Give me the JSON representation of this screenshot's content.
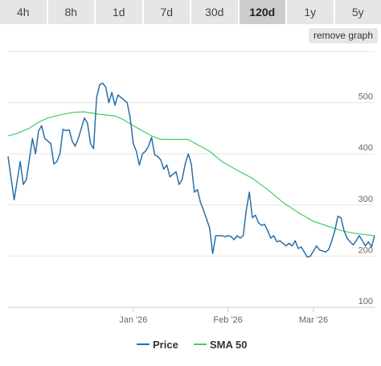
{
  "tabs": [
    {
      "label": "4h"
    },
    {
      "label": "8h"
    },
    {
      "label": "1d"
    },
    {
      "label": "7d"
    },
    {
      "label": "30d"
    },
    {
      "label": "120d",
      "active": true
    },
    {
      "label": "1y"
    },
    {
      "label": "5y"
    }
  ],
  "remove_graph_label": "remove graph",
  "chart_data": {
    "type": "line",
    "title": "",
    "xlabel": "",
    "ylabel": "",
    "x_ticks": [
      "Jan '26",
      "Feb '26",
      "Mar '26"
    ],
    "y_ticks": [
      100,
      200,
      300,
      400,
      500
    ],
    "ylim": [
      100,
      600
    ],
    "xlim": [
      "2025-11-21",
      "2026-03-21"
    ],
    "grid": true,
    "legend_position": "bottom",
    "series": [
      {
        "name": "Price",
        "color": "#2a6fa8",
        "points": [
          [
            "2025-11-21",
            395
          ],
          [
            "2025-11-23",
            310
          ],
          [
            "2025-11-25",
            385
          ],
          [
            "2025-11-26",
            340
          ],
          [
            "2025-11-27",
            350
          ],
          [
            "2025-11-29",
            430
          ],
          [
            "2025-11-30",
            400
          ],
          [
            "2025-12-01",
            445
          ],
          [
            "2025-12-02",
            455
          ],
          [
            "2025-12-03",
            430
          ],
          [
            "2025-12-05",
            420
          ],
          [
            "2025-12-06",
            380
          ],
          [
            "2025-12-07",
            385
          ],
          [
            "2025-12-08",
            400
          ],
          [
            "2025-12-09",
            448
          ],
          [
            "2025-12-10",
            445
          ],
          [
            "2025-12-11",
            447
          ],
          [
            "2025-12-12",
            425
          ],
          [
            "2025-12-13",
            415
          ],
          [
            "2025-12-14",
            430
          ],
          [
            "2025-12-16",
            470
          ],
          [
            "2025-12-17",
            460
          ],
          [
            "2025-12-18",
            420
          ],
          [
            "2025-12-19",
            410
          ],
          [
            "2025-12-20",
            510
          ],
          [
            "2025-12-21",
            535
          ],
          [
            "2025-12-22",
            538
          ],
          [
            "2025-12-23",
            530
          ],
          [
            "2025-12-24",
            500
          ],
          [
            "2025-12-25",
            520
          ],
          [
            "2025-12-26",
            495
          ],
          [
            "2025-12-27",
            515
          ],
          [
            "2025-12-29",
            505
          ],
          [
            "2025-12-30",
            500
          ],
          [
            "2025-12-31",
            470
          ],
          [
            "2026-01-01",
            420
          ],
          [
            "2026-01-02",
            405
          ],
          [
            "2026-01-03",
            378
          ],
          [
            "2026-01-04",
            400
          ],
          [
            "2026-01-05",
            405
          ],
          [
            "2026-01-06",
            415
          ],
          [
            "2026-01-07",
            432
          ],
          [
            "2026-01-08",
            398
          ],
          [
            "2026-01-09",
            395
          ],
          [
            "2026-01-10",
            388
          ],
          [
            "2026-01-11",
            370
          ],
          [
            "2026-01-12",
            378
          ],
          [
            "2026-01-13",
            355
          ],
          [
            "2026-01-14",
            360
          ],
          [
            "2026-01-15",
            365
          ],
          [
            "2026-01-16",
            340
          ],
          [
            "2026-01-17",
            350
          ],
          [
            "2026-01-18",
            380
          ],
          [
            "2026-01-19",
            400
          ],
          [
            "2026-01-20",
            380
          ],
          [
            "2026-01-21",
            325
          ],
          [
            "2026-01-22",
            330
          ],
          [
            "2026-01-23",
            305
          ],
          [
            "2026-01-24",
            290
          ],
          [
            "2026-01-26",
            255
          ],
          [
            "2026-01-27",
            205
          ],
          [
            "2026-01-28",
            240
          ],
          [
            "2026-01-29",
            240
          ],
          [
            "2026-01-30",
            240
          ],
          [
            "2026-01-31",
            238
          ],
          [
            "2026-02-01",
            240
          ],
          [
            "2026-02-02",
            238
          ],
          [
            "2026-02-03",
            232
          ],
          [
            "2026-02-04",
            240
          ],
          [
            "2026-02-05",
            235
          ],
          [
            "2026-02-06",
            240
          ],
          [
            "2026-02-07",
            290
          ],
          [
            "2026-02-08",
            325
          ],
          [
            "2026-02-09",
            275
          ],
          [
            "2026-02-10",
            280
          ],
          [
            "2026-02-11",
            265
          ],
          [
            "2026-02-12",
            260
          ],
          [
            "2026-02-13",
            262
          ],
          [
            "2026-02-14",
            250
          ],
          [
            "2026-02-15",
            235
          ],
          [
            "2026-02-16",
            240
          ],
          [
            "2026-02-17",
            228
          ],
          [
            "2026-02-18",
            230
          ],
          [
            "2026-02-19",
            225
          ],
          [
            "2026-02-20",
            220
          ],
          [
            "2026-02-21",
            225
          ],
          [
            "2026-02-22",
            220
          ],
          [
            "2026-02-23",
            230
          ],
          [
            "2026-02-24",
            215
          ],
          [
            "2026-02-25",
            218
          ],
          [
            "2026-02-27",
            198
          ],
          [
            "2026-02-28",
            200
          ],
          [
            "2026-03-01",
            210
          ],
          [
            "2026-03-02",
            220
          ],
          [
            "2026-03-03",
            212
          ],
          [
            "2026-03-04",
            210
          ],
          [
            "2026-03-05",
            208
          ],
          [
            "2026-03-06",
            213
          ],
          [
            "2026-03-07",
            230
          ],
          [
            "2026-03-08",
            250
          ],
          [
            "2026-03-09",
            278
          ],
          [
            "2026-03-10",
            275
          ],
          [
            "2026-03-11",
            250
          ],
          [
            "2026-03-12",
            235
          ],
          [
            "2026-03-13",
            228
          ],
          [
            "2026-03-14",
            222
          ],
          [
            "2026-03-15",
            230
          ],
          [
            "2026-03-16",
            240
          ],
          [
            "2026-03-17",
            230
          ],
          [
            "2026-03-18",
            220
          ],
          [
            "2026-03-19",
            228
          ],
          [
            "2026-03-20",
            218
          ],
          [
            "2026-03-21",
            240
          ]
        ]
      },
      {
        "name": "SMA 50",
        "color": "#44cc66",
        "points": [
          [
            "2025-11-21",
            435
          ],
          [
            "2025-11-24",
            440
          ],
          [
            "2025-11-28",
            450
          ],
          [
            "2025-12-01",
            462
          ],
          [
            "2025-12-04",
            470
          ],
          [
            "2025-12-08",
            476
          ],
          [
            "2025-12-12",
            481
          ],
          [
            "2025-12-16",
            482
          ],
          [
            "2025-12-20",
            478
          ],
          [
            "2025-12-23",
            476
          ],
          [
            "2025-12-26",
            474
          ],
          [
            "2025-12-29",
            466
          ],
          [
            "2026-01-01",
            455
          ],
          [
            "2026-01-04",
            445
          ],
          [
            "2026-01-07",
            435
          ],
          [
            "2026-01-10",
            428
          ],
          [
            "2026-01-14",
            428
          ],
          [
            "2026-01-19",
            428
          ],
          [
            "2026-01-22",
            418
          ],
          [
            "2026-01-26",
            405
          ],
          [
            "2026-01-30",
            385
          ],
          [
            "2026-02-04",
            368
          ],
          [
            "2026-02-09",
            352
          ],
          [
            "2026-02-14",
            330
          ],
          [
            "2026-02-19",
            305
          ],
          [
            "2026-02-24",
            285
          ],
          [
            "2026-03-01",
            268
          ],
          [
            "2026-03-06",
            258
          ],
          [
            "2026-03-10",
            250
          ],
          [
            "2026-03-14",
            245
          ],
          [
            "2026-03-18",
            242
          ],
          [
            "2026-03-21",
            240
          ]
        ]
      }
    ]
  }
}
